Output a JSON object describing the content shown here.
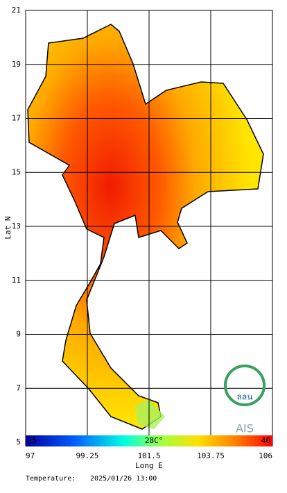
{
  "map": {
    "y_axis_label": "Lat N",
    "x_axis_label": "Long E",
    "ylim": [
      5,
      21
    ],
    "yticks": [
      21,
      19,
      17,
      15,
      13,
      11,
      9,
      7,
      5
    ],
    "xlim": [
      97,
      106
    ],
    "xticks": [
      97,
      99.25,
      101.5,
      103.75,
      106
    ],
    "colorbar": {
      "lim": [
        15,
        40
      ],
      "ticks": [
        15,
        {
          "value": 28,
          "label": "28C°"
        },
        40
      ]
    },
    "footer": {
      "label": "Temperature:",
      "timestamp": "2025/01/26 13:00"
    },
    "logos": [
      "ลลน",
      "AIS"
    ]
  }
}
